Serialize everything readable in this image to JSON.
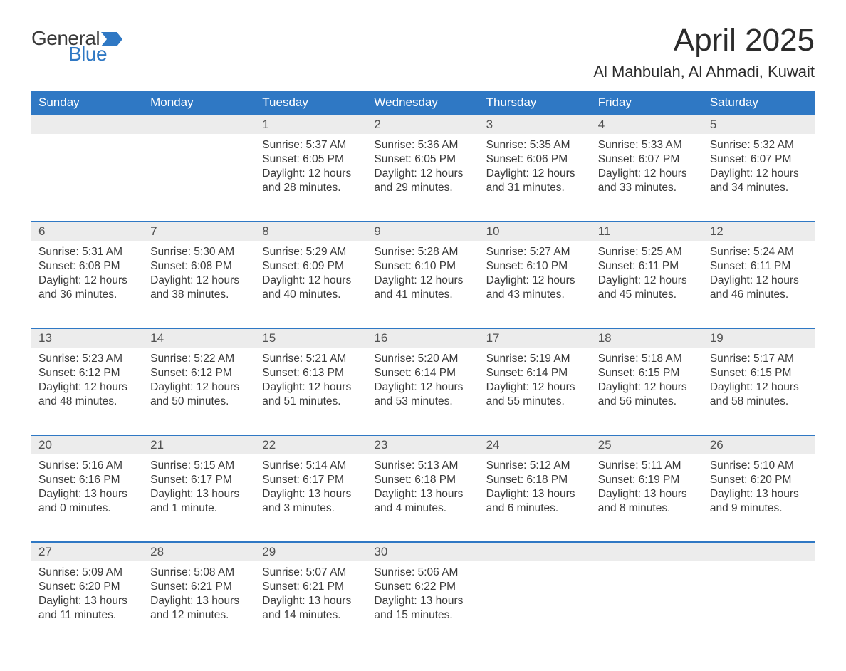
{
  "logo": {
    "text_top": "General",
    "text_bottom": "Blue"
  },
  "title": "April 2025",
  "location": "Al Mahbulah, Al Ahmadi, Kuwait",
  "colors": {
    "brand_blue": "#2f78c4",
    "header_bg": "#2f78c4",
    "header_text": "#ffffff",
    "daynum_bg": "#ececec",
    "daynum_text": "#505050",
    "body_text": "#3a3a3a",
    "page_bg": "#ffffff"
  },
  "typography": {
    "title_fontsize": 44,
    "location_fontsize": 22,
    "dow_fontsize": 17,
    "daynum_fontsize": 17,
    "body_fontsize": 15.5
  },
  "days_of_week": [
    "Sunday",
    "Monday",
    "Tuesday",
    "Wednesday",
    "Thursday",
    "Friday",
    "Saturday"
  ],
  "weeks": [
    [
      null,
      null,
      {
        "n": "1",
        "sr": "Sunrise: 5:37 AM",
        "ss": "Sunset: 6:05 PM",
        "d1": "Daylight: 12 hours",
        "d2": "and 28 minutes."
      },
      {
        "n": "2",
        "sr": "Sunrise: 5:36 AM",
        "ss": "Sunset: 6:05 PM",
        "d1": "Daylight: 12 hours",
        "d2": "and 29 minutes."
      },
      {
        "n": "3",
        "sr": "Sunrise: 5:35 AM",
        "ss": "Sunset: 6:06 PM",
        "d1": "Daylight: 12 hours",
        "d2": "and 31 minutes."
      },
      {
        "n": "4",
        "sr": "Sunrise: 5:33 AM",
        "ss": "Sunset: 6:07 PM",
        "d1": "Daylight: 12 hours",
        "d2": "and 33 minutes."
      },
      {
        "n": "5",
        "sr": "Sunrise: 5:32 AM",
        "ss": "Sunset: 6:07 PM",
        "d1": "Daylight: 12 hours",
        "d2": "and 34 minutes."
      }
    ],
    [
      {
        "n": "6",
        "sr": "Sunrise: 5:31 AM",
        "ss": "Sunset: 6:08 PM",
        "d1": "Daylight: 12 hours",
        "d2": "and 36 minutes."
      },
      {
        "n": "7",
        "sr": "Sunrise: 5:30 AM",
        "ss": "Sunset: 6:08 PM",
        "d1": "Daylight: 12 hours",
        "d2": "and 38 minutes."
      },
      {
        "n": "8",
        "sr": "Sunrise: 5:29 AM",
        "ss": "Sunset: 6:09 PM",
        "d1": "Daylight: 12 hours",
        "d2": "and 40 minutes."
      },
      {
        "n": "9",
        "sr": "Sunrise: 5:28 AM",
        "ss": "Sunset: 6:10 PM",
        "d1": "Daylight: 12 hours",
        "d2": "and 41 minutes."
      },
      {
        "n": "10",
        "sr": "Sunrise: 5:27 AM",
        "ss": "Sunset: 6:10 PM",
        "d1": "Daylight: 12 hours",
        "d2": "and 43 minutes."
      },
      {
        "n": "11",
        "sr": "Sunrise: 5:25 AM",
        "ss": "Sunset: 6:11 PM",
        "d1": "Daylight: 12 hours",
        "d2": "and 45 minutes."
      },
      {
        "n": "12",
        "sr": "Sunrise: 5:24 AM",
        "ss": "Sunset: 6:11 PM",
        "d1": "Daylight: 12 hours",
        "d2": "and 46 minutes."
      }
    ],
    [
      {
        "n": "13",
        "sr": "Sunrise: 5:23 AM",
        "ss": "Sunset: 6:12 PM",
        "d1": "Daylight: 12 hours",
        "d2": "and 48 minutes."
      },
      {
        "n": "14",
        "sr": "Sunrise: 5:22 AM",
        "ss": "Sunset: 6:12 PM",
        "d1": "Daylight: 12 hours",
        "d2": "and 50 minutes."
      },
      {
        "n": "15",
        "sr": "Sunrise: 5:21 AM",
        "ss": "Sunset: 6:13 PM",
        "d1": "Daylight: 12 hours",
        "d2": "and 51 minutes."
      },
      {
        "n": "16",
        "sr": "Sunrise: 5:20 AM",
        "ss": "Sunset: 6:14 PM",
        "d1": "Daylight: 12 hours",
        "d2": "and 53 minutes."
      },
      {
        "n": "17",
        "sr": "Sunrise: 5:19 AM",
        "ss": "Sunset: 6:14 PM",
        "d1": "Daylight: 12 hours",
        "d2": "and 55 minutes."
      },
      {
        "n": "18",
        "sr": "Sunrise: 5:18 AM",
        "ss": "Sunset: 6:15 PM",
        "d1": "Daylight: 12 hours",
        "d2": "and 56 minutes."
      },
      {
        "n": "19",
        "sr": "Sunrise: 5:17 AM",
        "ss": "Sunset: 6:15 PM",
        "d1": "Daylight: 12 hours",
        "d2": "and 58 minutes."
      }
    ],
    [
      {
        "n": "20",
        "sr": "Sunrise: 5:16 AM",
        "ss": "Sunset: 6:16 PM",
        "d1": "Daylight: 13 hours",
        "d2": "and 0 minutes."
      },
      {
        "n": "21",
        "sr": "Sunrise: 5:15 AM",
        "ss": "Sunset: 6:17 PM",
        "d1": "Daylight: 13 hours",
        "d2": "and 1 minute."
      },
      {
        "n": "22",
        "sr": "Sunrise: 5:14 AM",
        "ss": "Sunset: 6:17 PM",
        "d1": "Daylight: 13 hours",
        "d2": "and 3 minutes."
      },
      {
        "n": "23",
        "sr": "Sunrise: 5:13 AM",
        "ss": "Sunset: 6:18 PM",
        "d1": "Daylight: 13 hours",
        "d2": "and 4 minutes."
      },
      {
        "n": "24",
        "sr": "Sunrise: 5:12 AM",
        "ss": "Sunset: 6:18 PM",
        "d1": "Daylight: 13 hours",
        "d2": "and 6 minutes."
      },
      {
        "n": "25",
        "sr": "Sunrise: 5:11 AM",
        "ss": "Sunset: 6:19 PM",
        "d1": "Daylight: 13 hours",
        "d2": "and 8 minutes."
      },
      {
        "n": "26",
        "sr": "Sunrise: 5:10 AM",
        "ss": "Sunset: 6:20 PM",
        "d1": "Daylight: 13 hours",
        "d2": "and 9 minutes."
      }
    ],
    [
      {
        "n": "27",
        "sr": "Sunrise: 5:09 AM",
        "ss": "Sunset: 6:20 PM",
        "d1": "Daylight: 13 hours",
        "d2": "and 11 minutes."
      },
      {
        "n": "28",
        "sr": "Sunrise: 5:08 AM",
        "ss": "Sunset: 6:21 PM",
        "d1": "Daylight: 13 hours",
        "d2": "and 12 minutes."
      },
      {
        "n": "29",
        "sr": "Sunrise: 5:07 AM",
        "ss": "Sunset: 6:21 PM",
        "d1": "Daylight: 13 hours",
        "d2": "and 14 minutes."
      },
      {
        "n": "30",
        "sr": "Sunrise: 5:06 AM",
        "ss": "Sunset: 6:22 PM",
        "d1": "Daylight: 13 hours",
        "d2": "and 15 minutes."
      },
      null,
      null,
      null
    ]
  ]
}
